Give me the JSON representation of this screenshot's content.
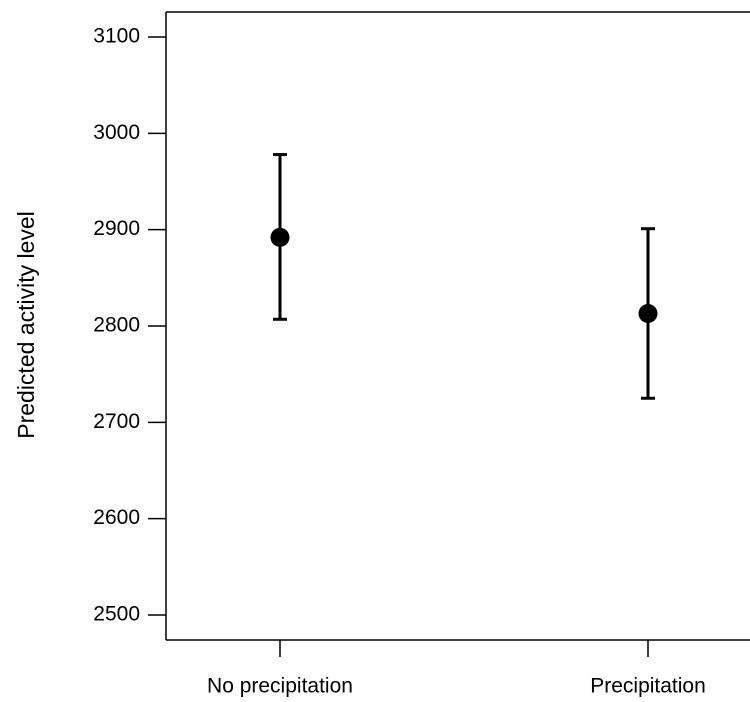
{
  "chart_data": {
    "type": "errorbar",
    "y_label": "Predicted activity level",
    "categories": [
      "No precipitation",
      "Precipitation"
    ],
    "values": [
      2892,
      2813
    ],
    "lower": [
      2807,
      2725
    ],
    "upper": [
      2978,
      2901
    ],
    "color": "#000000",
    "ylim": [
      2474,
      3126
    ],
    "yticks": [
      2500,
      2600,
      2700,
      2800,
      2900,
      3000,
      3100
    ],
    "grid": false
  }
}
